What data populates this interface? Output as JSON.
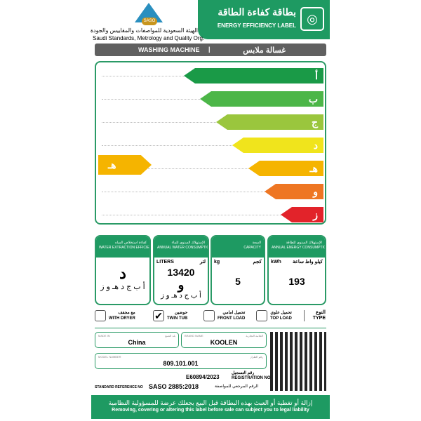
{
  "header": {
    "title_ar": "بطاقة كفاءة الطاقة",
    "title_en": "ENERGY EFFICIENCY LABEL",
    "org_ar": "الهيئة السعودية للمواصفات والمقاييس والجودة",
    "org_en": "Saudi Standards, Metrology and Quality Org.",
    "logo_text": "SASO"
  },
  "product": {
    "en": "WASHING MACHINE",
    "ar": "غسالة ملابس"
  },
  "scale": {
    "classes": [
      "أ",
      "ب",
      "ج",
      "د",
      "هـ",
      "و",
      "ز"
    ],
    "colors": [
      "#1a9a47",
      "#4cb648",
      "#9ac63d",
      "#f0e41c",
      "#f5b400",
      "#ee7623",
      "#e2232a"
    ],
    "rating": "هـ",
    "rating_color": "#f5b400"
  },
  "panels": [
    {
      "title_ar": "كفاءة استخلاص المياه",
      "title_en": "WATER EXTRACTION EFFICIENCY",
      "value": "د",
      "scale": "أ ب ج د هـ و ز"
    },
    {
      "title_ar": "الإستهلاك السنوي للماء",
      "title_en": "ANNUAL WATER CONSUMPTION",
      "unit_en": "LITERS",
      "unit_ar": "لتر",
      "value": "13420",
      "grade": "و",
      "scale": "أ ب ج د هـ و ز"
    },
    {
      "title_ar": "السعة",
      "title_en": "CAPACITY",
      "unit_en": "kg",
      "unit_ar": "كجم",
      "value": "5"
    },
    {
      "title_ar": "الإستهلاك السنوي للطاقة",
      "title_en": "ANNUAL ENERGY CONSUMPTION",
      "unit_en": "kWh",
      "unit_ar": "كيلو واط ساعة",
      "value": "193"
    }
  ],
  "type": {
    "label_ar": "النوع",
    "label_en": "TYPE",
    "options": [
      {
        "ar": "مع مجفف",
        "en": "WITH DRYER",
        "checked": false
      },
      {
        "ar": "حوضين",
        "en": "TWIN TUB",
        "checked": true
      },
      {
        "ar": "تحميل امامي",
        "en": "FRONT LOAD",
        "checked": false
      },
      {
        "ar": "تحميل علوي",
        "en": "TOP LOAD",
        "checked": false
      }
    ]
  },
  "fields": {
    "made_in_label": "MADE IN",
    "made_in_ar": "بلد الصنع",
    "made_in": "China",
    "brand_label": "BRAND NAME",
    "brand_ar": "العلامة التجارية",
    "brand": "KOOLEN",
    "model_label": "MODEL NUMBER",
    "model_ar": "رقم الطراز",
    "model": "809.101.001"
  },
  "registration": {
    "label_ar": "رقم التسجيل",
    "label_en": "REGISTRATION NO",
    "value": "E60894/2023"
  },
  "standard": {
    "label_en": "STANDARD REFERENCE NO",
    "label_ar": "الرقم المرجعي للمواصفة",
    "value": "SASO 2885:2018"
  },
  "footer": {
    "ar": "إزالة أو تغطية أو العبث بهذه البطاقة قبل البيع يجعلك عرضة للمسؤولية النظامية",
    "en": "Removing, covering or altering this label before sale can subject you to legal liability"
  }
}
